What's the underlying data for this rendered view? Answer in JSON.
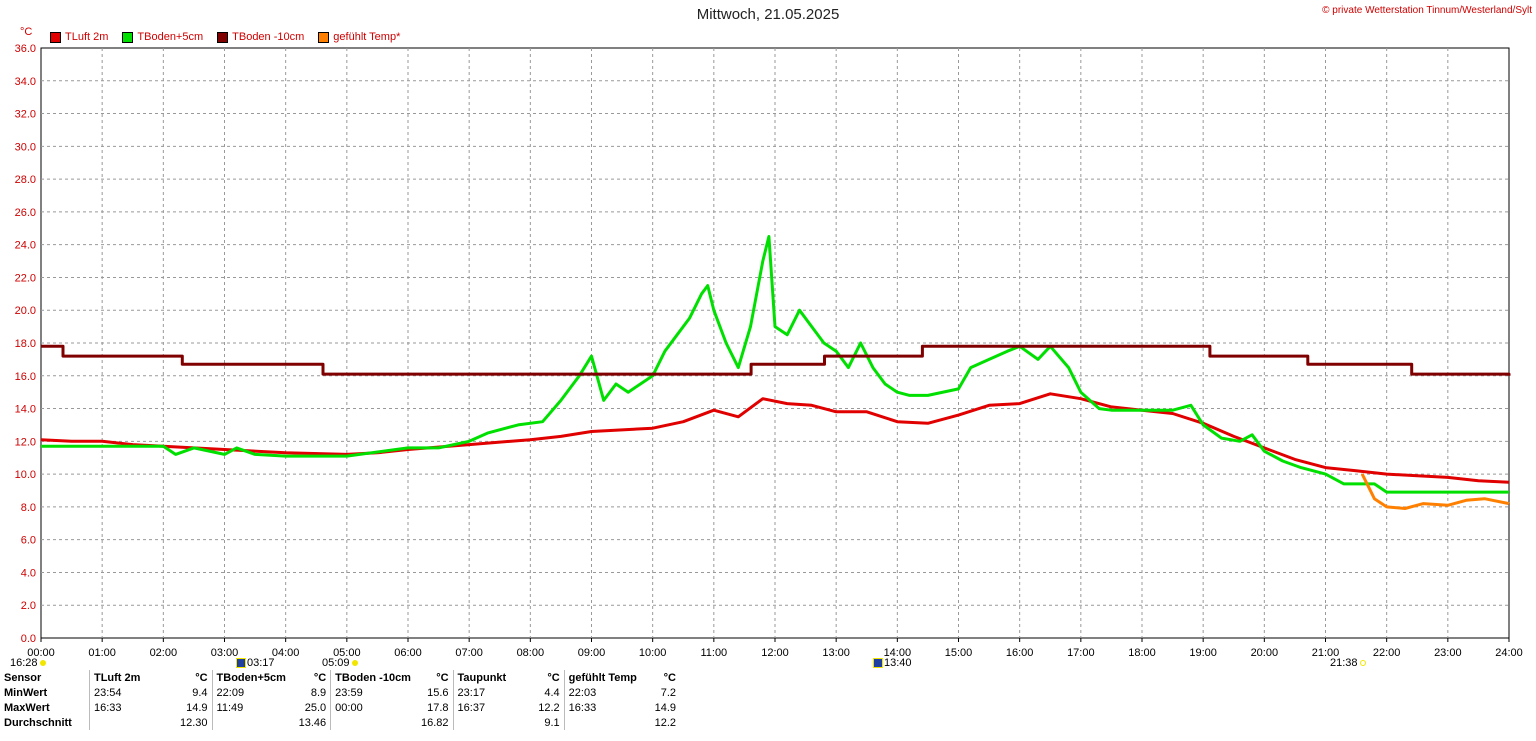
{
  "title": "Mittwoch, 21.05.2025",
  "credit": "© private Wetterstation Tinnum/Westerland/Sylt",
  "unit_label": "°C",
  "legend": [
    {
      "label": "TLuft 2m",
      "color": "#e00000"
    },
    {
      "label": "TBoden+5cm",
      "color": "#00e000"
    },
    {
      "label": "TBoden -10cm",
      "color": "#800000"
    },
    {
      "label": "gefühlt Temp*",
      "color": "#ff8000"
    }
  ],
  "markers": {
    "sunrise_left": "16:28",
    "moonset": "03:17",
    "sunrise": "05:09",
    "moonrise": "13:40",
    "sunset": "21:38"
  },
  "chart_data": {
    "type": "line",
    "title": "Mittwoch, 21.05.2025",
    "xlabel": "",
    "ylabel": "°C",
    "xlim": [
      0,
      24
    ],
    "ylim": [
      0,
      36
    ],
    "grid": true,
    "legend_position": "top-left",
    "x_ticks": [
      "00:00",
      "01:00",
      "02:00",
      "03:00",
      "04:00",
      "05:00",
      "06:00",
      "07:00",
      "08:00",
      "09:00",
      "10:00",
      "11:00",
      "12:00",
      "13:00",
      "14:00",
      "15:00",
      "16:00",
      "17:00",
      "18:00",
      "19:00",
      "20:00",
      "21:00",
      "22:00",
      "23:00",
      "24:00"
    ],
    "y_ticks": [
      "0.0",
      "2.0",
      "4.0",
      "6.0",
      "8.0",
      "10.0",
      "12.0",
      "14.0",
      "16.0",
      "18.0",
      "20.0",
      "22.0",
      "24.0",
      "26.0",
      "28.0",
      "30.0",
      "32.0",
      "34.0",
      "36.0"
    ],
    "series": [
      {
        "name": "TLuft 2m",
        "color": "#e00000",
        "x": [
          0,
          0.5,
          1,
          1.5,
          2,
          3,
          4,
          5,
          5.5,
          6,
          7,
          8,
          8.5,
          9,
          9.5,
          10,
          10.5,
          11,
          11.4,
          11.8,
          12.2,
          12.6,
          13,
          13.5,
          14,
          14.5,
          15,
          15.5,
          16,
          16.5,
          17,
          17.5,
          18,
          18.5,
          19,
          19.5,
          20,
          20.5,
          21,
          21.5,
          22,
          22.5,
          23,
          23.5,
          24
        ],
        "values": [
          12.1,
          12.0,
          12.0,
          11.8,
          11.7,
          11.5,
          11.3,
          11.2,
          11.3,
          11.5,
          11.8,
          12.1,
          12.3,
          12.6,
          12.7,
          12.8,
          13.2,
          13.9,
          13.5,
          14.6,
          14.3,
          14.2,
          13.8,
          13.8,
          13.2,
          13.1,
          13.6,
          14.2,
          14.3,
          14.9,
          14.6,
          14.1,
          13.9,
          13.7,
          13.1,
          12.3,
          11.6,
          10.9,
          10.4,
          10.2,
          10.0,
          9.9,
          9.8,
          9.6,
          9.5
        ]
      },
      {
        "name": "TBoden+5cm",
        "color": "#00e000",
        "x": [
          0,
          1,
          2,
          2.2,
          2.5,
          3,
          3.2,
          3.5,
          4,
          5,
          6,
          6.5,
          7,
          7.3,
          7.8,
          8.2,
          8.5,
          8.8,
          9,
          9.2,
          9.4,
          9.6,
          9.8,
          10,
          10.2,
          10.4,
          10.6,
          10.8,
          10.9,
          11,
          11.2,
          11.4,
          11.6,
          11.8,
          11.9,
          12,
          12.2,
          12.4,
          12.6,
          12.8,
          13,
          13.2,
          13.4,
          13.6,
          13.8,
          14,
          14.2,
          14.5,
          15,
          15.2,
          15.5,
          15.8,
          16,
          16.3,
          16.5,
          16.8,
          17,
          17.3,
          17.5,
          18,
          18.5,
          18.8,
          19,
          19.3,
          19.6,
          19.8,
          20,
          20.3,
          20.6,
          21,
          21.3,
          21.8,
          22,
          22.5,
          23,
          23.5,
          24
        ],
        "values": [
          11.7,
          11.7,
          11.7,
          11.2,
          11.6,
          11.2,
          11.6,
          11.2,
          11.1,
          11.1,
          11.6,
          11.6,
          12.0,
          12.5,
          13.0,
          13.2,
          14.5,
          16.0,
          17.2,
          14.5,
          15.5,
          15.0,
          15.5,
          16.0,
          17.5,
          18.5,
          19.5,
          21.0,
          21.5,
          20.0,
          18.0,
          16.5,
          19.0,
          23.0,
          24.5,
          19.0,
          18.5,
          20.0,
          19.0,
          18.0,
          17.5,
          16.5,
          18.0,
          16.5,
          15.5,
          15.0,
          14.8,
          14.8,
          15.2,
          16.5,
          17.0,
          17.5,
          17.8,
          17.0,
          17.8,
          16.5,
          15.0,
          14.0,
          13.9,
          13.9,
          13.9,
          14.2,
          13.0,
          12.2,
          12.0,
          12.4,
          11.4,
          10.8,
          10.4,
          10.0,
          9.4,
          9.4,
          8.9,
          8.9,
          8.9,
          8.9,
          8.9
        ]
      },
      {
        "name": "TBoden -10cm",
        "color": "#800000",
        "x": [
          0,
          0.35,
          0.36,
          2.3,
          2.31,
          4.6,
          4.61,
          11.6,
          11.61,
          12.8,
          12.81,
          14.4,
          14.41,
          19.1,
          19.11,
          20.7,
          20.71,
          22.4,
          22.41,
          24
        ],
        "values": [
          17.8,
          17.8,
          17.2,
          17.2,
          16.7,
          16.7,
          16.1,
          16.1,
          16.7,
          16.7,
          17.2,
          17.2,
          17.8,
          17.8,
          17.2,
          17.2,
          16.7,
          16.7,
          16.1,
          16.0
        ]
      },
      {
        "name": "gefühlt Temp*",
        "color": "#ff8000",
        "x": [
          21.6,
          21.8,
          22,
          22.3,
          22.6,
          23,
          23.3,
          23.6,
          24
        ],
        "values": [
          10.0,
          8.5,
          8.0,
          7.9,
          8.2,
          8.1,
          8.4,
          8.5,
          8.2
        ]
      }
    ]
  },
  "stats": {
    "headers": [
      "Sensor",
      "TLuft 2m",
      "°C",
      "TBoden+5cm",
      "°C",
      "TBoden -10cm",
      "°C",
      "Taupunkt",
      "°C",
      "gefühlt Temp",
      "°C"
    ],
    "rows": [
      {
        "label": "MinWert",
        "cells": [
          "23:54",
          "9.4",
          "22:09",
          "8.9",
          "23:59",
          "15.6",
          "23:17",
          "4.4",
          "22:03",
          "7.2"
        ]
      },
      {
        "label": "MaxWert",
        "cells": [
          "16:33",
          "14.9",
          "11:49",
          "25.0",
          "00:00",
          "17.8",
          "16:37",
          "12.2",
          "16:33",
          "14.9"
        ]
      },
      {
        "label": "Durchschnitt",
        "cells": [
          "",
          "12.30",
          "",
          "13.46",
          "",
          "16.82",
          "",
          "9.1",
          "",
          "12.2"
        ]
      }
    ]
  }
}
